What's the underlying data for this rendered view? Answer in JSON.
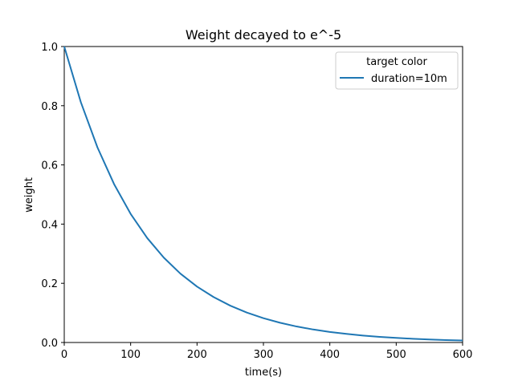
{
  "chart_data": {
    "type": "line",
    "title": "Weight decayed to e^-5",
    "xlabel": "time(s)",
    "ylabel": "weight",
    "xlim": [
      0,
      600
    ],
    "ylim": [
      0.0,
      1.0
    ],
    "xticks": [
      0,
      100,
      200,
      300,
      400,
      500,
      600
    ],
    "xtick_labels": [
      "0",
      "100",
      "200",
      "300",
      "400",
      "500",
      "600"
    ],
    "yticks": [
      0.0,
      0.2,
      0.4,
      0.6,
      0.8,
      1.0
    ],
    "ytick_labels": [
      "0.0",
      "0.2",
      "0.4",
      "0.6",
      "0.8",
      "1.0"
    ],
    "grid": false,
    "legend": {
      "title": "target color",
      "placement": "upper-right"
    },
    "series": [
      {
        "name": "duration=10m",
        "color": "#1f77b4",
        "x": [
          0,
          25,
          50,
          75,
          100,
          125,
          150,
          175,
          200,
          225,
          250,
          275,
          300,
          325,
          350,
          375,
          400,
          425,
          450,
          475,
          500,
          525,
          550,
          575,
          600
        ],
        "y": [
          1.0,
          0.8119,
          0.6592,
          0.5353,
          0.4346,
          0.3528,
          0.2865,
          0.2326,
          0.1889,
          0.1534,
          0.1245,
          0.1011,
          0.0821,
          0.0667,
          0.0541,
          0.0439,
          0.0357,
          0.029,
          0.0235,
          0.0191,
          0.0155,
          0.0126,
          0.0102,
          0.0083,
          0.0067
        ]
      }
    ]
  }
}
